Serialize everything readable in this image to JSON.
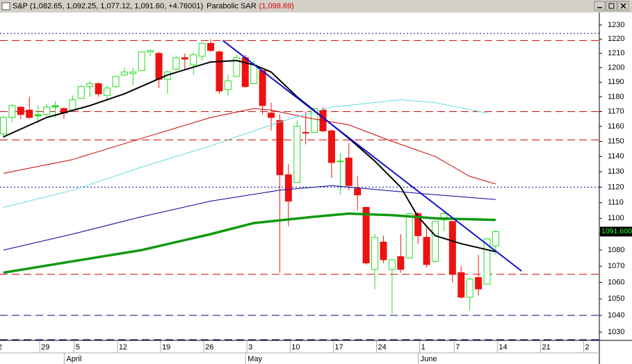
{
  "header": {
    "quote": "S&P (1,082.65, 1,092.25, 1,077.12, 1,091.60, +4.76001)",
    "indicator": "Parabolic SAR",
    "indicator_value": "(1,098.69)"
  },
  "chart_data": {
    "type": "candlestick",
    "log_scale": true,
    "categories": [
      "2",
      null,
      null,
      null,
      null,
      "29",
      null,
      null,
      null,
      "5",
      null,
      null,
      null,
      null,
      "12",
      null,
      null,
      null,
      null,
      "19",
      null,
      null,
      null,
      null,
      "26",
      null,
      null,
      null,
      null,
      "3",
      null,
      null,
      null,
      null,
      "10",
      null,
      null,
      null,
      null,
      "17",
      null,
      null,
      null,
      null,
      "24",
      null,
      null,
      null,
      null,
      "1",
      null,
      null,
      null,
      "7",
      null,
      null,
      null,
      null,
      "14",
      null,
      null,
      null,
      null,
      "21",
      null,
      null,
      null,
      null,
      "2",
      null
    ],
    "months": [
      null,
      null,
      null,
      null,
      null,
      null,
      null,
      null,
      "April",
      null,
      null,
      null,
      null,
      null,
      null,
      null,
      null,
      null,
      null,
      null,
      null,
      null,
      null,
      null,
      null,
      null,
      null,
      null,
      null,
      "May",
      null,
      null,
      null,
      null,
      null,
      null,
      null,
      null,
      null,
      null,
      null,
      null,
      null,
      null,
      null,
      null,
      null,
      null,
      null,
      "June",
      null,
      null,
      null,
      null,
      null,
      null,
      null,
      null,
      null,
      null,
      null,
      null,
      null,
      null,
      null,
      null,
      null,
      null,
      null,
      null
    ],
    "open": [
      1155,
      1166,
      1173,
      1171,
      1168,
      1168,
      1174,
      1172,
      1171,
      1179,
      1187,
      1189,
      1181,
      1187,
      1195,
      1196,
      1198,
      1211,
      1210,
      1192,
      1199,
      1207,
      1202,
      1208,
      1217,
      1211,
      1185,
      1194,
      1207,
      1189,
      1198,
      1169,
      1164,
      1128,
      1123,
      1156,
      1156,
      1171,
      1157,
      1137,
      1139,
      1119,
      1107,
      1068,
      1085,
      1068,
      1076,
      1075,
      1103,
      1088,
      1073,
      1099,
      1098,
      1066,
      1051,
      1063,
      1059,
      1082.65,
      null,
      null,
      null,
      null,
      null,
      null,
      null,
      null,
      null,
      null,
      null,
      null
    ],
    "high": [
      1167,
      1175,
      1173,
      1180,
      1174,
      1175,
      1177,
      1173,
      1181,
      1188,
      1191,
      1190,
      1188,
      1194,
      1200,
      1200,
      1211,
      1213,
      1211,
      1198,
      1208,
      1210,
      1211,
      1218,
      1220,
      1212,
      1195,
      1209,
      1209,
      1205,
      1198,
      1176,
      1168,
      1135,
      1164,
      1170,
      1172,
      1173,
      1158,
      1142,
      1149,
      1127,
      1107,
      1090,
      1089,
      1074,
      1090,
      1103,
      1104,
      1094,
      1098,
      1105,
      1098,
      1070,
      1063,
      1077,
      1087,
      1092.25,
      null,
      null,
      null,
      null,
      null,
      null,
      null,
      null,
      null,
      null,
      null,
      null
    ],
    "low": [
      1152,
      1163,
      1165,
      1165,
      1162,
      1167,
      1166,
      1165,
      1170,
      1179,
      1180,
      1180,
      1177,
      1186,
      1194,
      1188,
      1198,
      1208,
      1186,
      1182,
      1198,
      1198,
      1195,
      1205,
      1211,
      1182,
      1181,
      1194,
      1186,
      1189,
      1168,
      1157,
      1066,
      1095,
      1123,
      1148,
      1156,
      1156,
      1126,
      1115,
      1118,
      1105,
      1071,
      1056,
      1072,
      1041,
      1066,
      1075,
      1084,
      1069,
      1072,
      1092,
      1060,
      1050,
      1043,
      1052,
      1059,
      1077.12,
      null,
      null,
      null,
      null,
      null,
      null,
      null,
      null,
      null,
      null,
      null,
      null
    ],
    "close": [
      1166,
      1174,
      1168,
      1166,
      1167,
      1173,
      1173,
      1169,
      1178,
      1187,
      1189,
      1182,
      1186,
      1194,
      1197,
      1197,
      1211,
      1212,
      1192,
      1197,
      1207,
      1206,
      1209,
      1217,
      1212,
      1184,
      1191,
      1207,
      1187,
      1202,
      1174,
      1166,
      1128,
      1111,
      1160,
      1156,
      1172,
      1157,
      1136,
      1137,
      1121,
      1115,
      1072,
      1088,
      1074,
      1074,
      1068,
      1103,
      1089,
      1071,
      1098,
      1103,
      1065,
      1051,
      1062,
      1056,
      1087,
      1091.6,
      null,
      null,
      null,
      null,
      null,
      null,
      null,
      null,
      null,
      null,
      null,
      null
    ],
    "up_color": "#22dd22",
    "down_color": "#ee1111",
    "overlays": [
      {
        "color": "#000000",
        "width": 2,
        "x": [
          0,
          5,
          10,
          14,
          19,
          24,
          27,
          29,
          31,
          34,
          37,
          40,
          43,
          46,
          48,
          50,
          53,
          57
        ],
        "values": [
          1153,
          1166,
          1174,
          1182,
          1195,
          1204,
          1205,
          1202,
          1197,
          1180,
          1166,
          1152,
          1137,
          1120,
          1101,
          1089,
          1084,
          1079
        ]
      },
      {
        "color": "#cc0000",
        "width": 1,
        "x": [
          0,
          8,
          16,
          24,
          29,
          31,
          35,
          40,
          45,
          50,
          54,
          57
        ],
        "values": [
          1129,
          1138,
          1152,
          1166,
          1172,
          1171,
          1166,
          1161,
          1150,
          1140,
          1127,
          1122
        ]
      },
      {
        "color": "#000099",
        "width": 1,
        "x": [
          0,
          8,
          16,
          24,
          32,
          38,
          42,
          48,
          57
        ],
        "values": [
          1080,
          1090,
          1101,
          1111,
          1118,
          1121,
          1119,
          1116,
          1112
        ]
      },
      {
        "color": "#66dddd",
        "width": 1,
        "x": [
          0,
          8,
          16,
          24,
          32,
          38,
          46,
          50,
          56
        ],
        "values": [
          1107,
          1118,
          1133,
          1147,
          1163,
          1173,
          1178,
          1176,
          1169
        ]
      },
      {
        "color": "#119911",
        "width": 3.5,
        "x": [
          0,
          8,
          16,
          24,
          29,
          36,
          40,
          45,
          50,
          57
        ],
        "values": [
          1066,
          1073,
          1080,
          1090,
          1097,
          1101,
          1103,
          1102,
          1100,
          1099
        ]
      },
      {
        "color": "#1111cc",
        "width": 2,
        "x": [
          25.4,
          60
        ],
        "values": [
          1219,
          1067
        ]
      }
    ],
    "hlines": [
      {
        "value": 1224,
        "color": "#0000aa",
        "style": "dotted"
      },
      {
        "value": 1219,
        "color": "#cc0000",
        "style": "dashed"
      },
      {
        "value": 1170,
        "color": "#cc0000",
        "style": "dashed"
      },
      {
        "value": 1151,
        "color": "#cc0000",
        "style": "dashed"
      },
      {
        "value": 1120,
        "color": "#0000aa",
        "style": "dotted"
      },
      {
        "value": 1065,
        "color": "#cc0000",
        "style": "dashed"
      },
      {
        "value": 1040,
        "color": "#000080",
        "style": "dashed"
      },
      {
        "value": 1025.5,
        "color": "#000080",
        "style": "dashed"
      }
    ],
    "last_price": {
      "value": 1091.6,
      "label": "1091.600"
    },
    "ylim": [
      1025.1,
      1238.9
    ],
    "yticks": [
      1030,
      1040,
      1050,
      1060,
      1070,
      1080,
      1090,
      1100,
      1110,
      1120,
      1130,
      1140,
      1150,
      1160,
      1170,
      1180,
      1190,
      1200,
      1210,
      1220,
      1230
    ]
  }
}
